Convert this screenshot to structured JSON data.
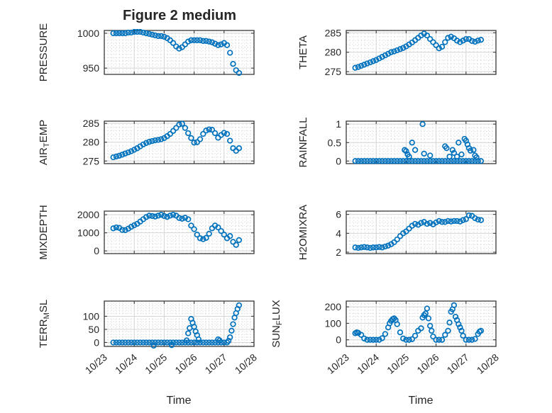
{
  "title": "Figure 2 medium",
  "xlabel": "Time",
  "colors": {
    "marker": "#0072BD",
    "axis": "#3a3a3a",
    "text": "#262626",
    "grid_major": "#d4d4d4",
    "grid_minor": "#c9c9c9",
    "background": "#ffffff"
  },
  "x_axis": {
    "lim": [
      23,
      28
    ],
    "ticks": [
      23,
      24,
      25,
      26,
      27,
      28
    ],
    "tick_labels": [
      "10/23",
      "10/24",
      "10/25",
      "10/26",
      "10/27",
      "10/28"
    ],
    "minor_step": 0.125
  },
  "time_base": [
    23.3,
    23.4,
    23.5,
    23.6,
    23.7,
    23.8,
    23.9,
    24.0,
    24.1,
    24.2,
    24.3,
    24.4,
    24.5,
    24.6,
    24.7,
    24.8,
    24.9,
    25.0,
    25.1,
    25.2,
    25.3,
    25.4,
    25.5,
    25.6,
    25.7,
    25.8,
    25.9,
    26.0,
    26.1,
    26.2,
    26.3,
    26.4,
    26.5,
    26.6,
    26.7,
    26.8,
    26.9,
    27.0,
    27.1,
    27.2,
    27.3,
    27.4,
    27.5
  ],
  "chart_data": [
    {
      "id": "pressure",
      "type": "scatter",
      "row": 0,
      "col": 0,
      "ylabel": "PRESSURE",
      "ylabel_parts": [
        {
          "t": "PRESSURE",
          "sub": false
        }
      ],
      "ylim": [
        941,
        1004
      ],
      "yticks": [
        950,
        1000
      ],
      "ytick_labels": [
        "950",
        "1000"
      ],
      "y_minor_step": 5,
      "y_base": [
        1000,
        1000,
        1000,
        1000,
        1000,
        1001,
        1001,
        1002,
        1002,
        1002,
        1001,
        1000,
        999,
        998,
        997,
        996,
        996,
        995,
        993,
        990,
        986,
        981,
        978,
        980,
        984,
        988,
        990,
        990,
        990,
        990,
        989,
        989,
        988,
        987,
        985,
        983,
        984,
        986,
        983,
        972,
        956,
        947,
        943
      ]
    },
    {
      "id": "theta",
      "type": "scatter",
      "row": 0,
      "col": 1,
      "ylabel": "THETA",
      "ylabel_parts": [
        {
          "t": "THETA",
          "sub": false
        }
      ],
      "ylim": [
        274.3,
        285.6
      ],
      "yticks": [
        275,
        280,
        285
      ],
      "ytick_labels": [
        "275",
        "280",
        "285"
      ],
      "y_minor_step": 1,
      "y_base": [
        276.0,
        276.2,
        276.5,
        276.8,
        277.1,
        277.4,
        277.7,
        278.0,
        278.4,
        278.8,
        279.2,
        279.6,
        280.0,
        280.2,
        280.5,
        280.8,
        281.1,
        281.5,
        282.0,
        282.5,
        283.1,
        283.7,
        284.3,
        284.8,
        284.3,
        283.4,
        282.6,
        281.8,
        281.0,
        281.4,
        282.6,
        283.7,
        284.0,
        283.6,
        283.0,
        282.6,
        283.0,
        283.4,
        283.4,
        282.9,
        282.7,
        283.0,
        283.2
      ]
    },
    {
      "id": "air_temp",
      "type": "scatter",
      "row": 1,
      "col": 0,
      "ylabel": "AIR_TEMP",
      "ylabel_parts": [
        {
          "t": "AIR",
          "sub": false
        },
        {
          "t": "T",
          "sub": true
        },
        {
          "t": "EMP",
          "sub": false
        }
      ],
      "ylim": [
        274.3,
        285.6
      ],
      "yticks": [
        275,
        280,
        285
      ],
      "ytick_labels": [
        "275",
        "280",
        "285"
      ],
      "y_minor_step": 1,
      "y_base": [
        276.0,
        276.2,
        276.4,
        276.7,
        277.0,
        277.3,
        277.6,
        278.0,
        278.4,
        278.9,
        279.4,
        279.8,
        280.1,
        280.3,
        280.5,
        280.6,
        280.8,
        281.1,
        281.6,
        282.2,
        283.0,
        283.8,
        284.7,
        284.9,
        283.8,
        282.4,
        281.1,
        279.9,
        280.0,
        280.8,
        282.2,
        283.1,
        283.4,
        283.3,
        282.4,
        281.2,
        281.9,
        282.5,
        282.2,
        280.4,
        278.4,
        277.7,
        278.4
      ]
    },
    {
      "id": "rainfall",
      "type": "scatter",
      "row": 1,
      "col": 1,
      "ylabel": "RAINFALL",
      "ylabel_parts": [
        {
          "t": "RAINFALL",
          "sub": false
        }
      ],
      "ylim": [
        -0.07,
        1.08
      ],
      "yticks": [
        0,
        0.5,
        1
      ],
      "ytick_labels": [
        "0",
        "0.5",
        "1"
      ],
      "y_minor_step": 0.1,
      "y_base": [
        0,
        0,
        0,
        0,
        0,
        0,
        0,
        0,
        0,
        0,
        0,
        0,
        0,
        0,
        0,
        0,
        0,
        0,
        0,
        0,
        0,
        0,
        0,
        0,
        0,
        0,
        0,
        0,
        0,
        0,
        0,
        0,
        0,
        0,
        0,
        0,
        0,
        0,
        0,
        0,
        0,
        0,
        0
      ],
      "x_extra": [
        24.95,
        25.0,
        25.05,
        25.1,
        25.2,
        25.3,
        25.55,
        25.6,
        25.8,
        26.3,
        26.35,
        26.45,
        26.55,
        26.6,
        26.7,
        26.75,
        26.85,
        26.95,
        27.0,
        27.05,
        27.1,
        27.15,
        27.25,
        27.3,
        27.35
      ],
      "y_extra": [
        0.3,
        0.27,
        0.18,
        0.12,
        0.5,
        0.3,
        1.0,
        0.2,
        0.15,
        0.4,
        0.35,
        0.12,
        0.3,
        0.22,
        0.12,
        0.5,
        0.18,
        0.6,
        0.55,
        0.45,
        0.35,
        0.28,
        0.3,
        0.15,
        0.1
      ]
    },
    {
      "id": "mixdepth",
      "type": "scatter",
      "row": 2,
      "col": 0,
      "ylabel": "MIXDEPTH",
      "ylabel_parts": [
        {
          "t": "MIXDEPTH",
          "sub": false
        }
      ],
      "ylim": [
        -150,
        2200
      ],
      "yticks": [
        0,
        1000,
        2000
      ],
      "ytick_labels": [
        "0",
        "1000",
        "2000"
      ],
      "y_minor_step": 200,
      "y_base": [
        1250,
        1300,
        1270,
        1160,
        1150,
        1230,
        1330,
        1420,
        1500,
        1620,
        1750,
        1870,
        1950,
        1930,
        1900,
        1950,
        2000,
        1930,
        1880,
        1950,
        2000,
        1950,
        1820,
        1780,
        1830,
        1750,
        1400,
        1200,
        900,
        700,
        650,
        720,
        950,
        1250,
        1400,
        1300,
        1100,
        900,
        700,
        820,
        500,
        330,
        600
      ]
    },
    {
      "id": "h2omixra",
      "type": "scatter",
      "row": 2,
      "col": 1,
      "ylabel": "H2OMIXRA",
      "ylabel_parts": [
        {
          "t": "H2OMIXRA",
          "sub": false
        }
      ],
      "ylim": [
        1.85,
        6.35
      ],
      "yticks": [
        2,
        4,
        6
      ],
      "ytick_labels": [
        "2",
        "4",
        "6"
      ],
      "y_minor_step": 0.4,
      "y_base": [
        2.5,
        2.45,
        2.5,
        2.55,
        2.5,
        2.45,
        2.5,
        2.5,
        2.55,
        2.5,
        2.6,
        2.7,
        2.85,
        3.05,
        3.35,
        3.7,
        4.0,
        4.2,
        4.5,
        4.8,
        5.0,
        4.9,
        5.1,
        5.2,
        5.0,
        5.1,
        4.95,
        5.15,
        5.3,
        5.2,
        5.2,
        5.3,
        5.25,
        5.3,
        5.3,
        5.25,
        5.4,
        5.5,
        5.9,
        5.85,
        5.6,
        5.45,
        5.4
      ]
    },
    {
      "id": "terr_msl",
      "type": "scatter",
      "row": 3,
      "col": 0,
      "ylabel": "TERR_MSL",
      "ylabel_parts": [
        {
          "t": "TERR",
          "sub": false
        },
        {
          "t": "M",
          "sub": true
        },
        {
          "t": "SL",
          "sub": false
        }
      ],
      "ylim": [
        -15,
        158
      ],
      "yticks": [
        0,
        50,
        100
      ],
      "ytick_labels": [
        "0",
        "50",
        "100"
      ],
      "y_minor_step": 10,
      "x": [
        23.3,
        23.4,
        23.5,
        23.6,
        23.7,
        23.8,
        23.9,
        24.0,
        24.1,
        24.2,
        24.3,
        24.4,
        24.5,
        24.6,
        24.7,
        24.8,
        24.9,
        25.0,
        25.1,
        25.2,
        25.3,
        25.4,
        25.5,
        25.6,
        25.7,
        25.8,
        25.9,
        26.0,
        26.1,
        26.2,
        26.3,
        26.4,
        26.5,
        26.6,
        26.7,
        26.8,
        26.9,
        27.0,
        27.1,
        24.65,
        25.25,
        25.75,
        25.8,
        25.85,
        25.9,
        25.95,
        26.0,
        26.05,
        26.1,
        26.15,
        26.8,
        26.85,
        27.15,
        27.2,
        27.25,
        27.3,
        27.35,
        27.4,
        27.45,
        27.5
      ],
      "y": [
        0,
        0,
        0,
        0,
        0,
        0,
        0,
        0,
        0,
        0,
        0,
        0,
        0,
        0,
        0,
        0,
        0,
        0,
        0,
        0,
        0,
        0,
        0,
        0,
        0,
        0,
        0,
        0,
        0,
        0,
        0,
        0,
        0,
        0,
        0,
        0,
        0,
        0,
        0,
        -12,
        -10,
        8,
        35,
        55,
        90,
        75,
        60,
        42,
        28,
        12,
        12,
        8,
        6,
        20,
        45,
        70,
        95,
        112,
        128,
        142
      ]
    },
    {
      "id": "sun_flux",
      "type": "scatter",
      "row": 3,
      "col": 1,
      "ylabel": "SUN_FLUX",
      "ylabel_parts": [
        {
          "t": "SUN",
          "sub": false
        },
        {
          "t": "F",
          "sub": true
        },
        {
          "t": "LUX",
          "sub": false
        }
      ],
      "ylim": [
        -40,
        235
      ],
      "yticks": [
        0,
        100,
        200
      ],
      "ytick_labels": [
        "0",
        "100",
        "200"
      ],
      "y_minor_step": 20,
      "y_base": [
        40,
        42,
        30,
        8,
        0,
        0,
        0,
        0,
        0,
        10,
        35,
        75,
        115,
        130,
        95,
        45,
        8,
        0,
        0,
        4,
        25,
        55,
        70,
        150,
        190,
        85,
        20,
        0,
        0,
        0,
        30,
        55,
        170,
        210,
        120,
        75,
        25,
        0,
        0,
        0,
        5,
        35,
        55
      ],
      "x_extra": [
        23.35,
        24.45,
        24.55,
        24.65,
        25.55,
        25.65,
        25.75,
        25.85,
        26.45,
        26.55,
        26.65,
        26.75,
        26.85,
        27.45
      ],
      "y_extra": [
        45,
        100,
        125,
        120,
        135,
        160,
        130,
        55,
        105,
        185,
        140,
        95,
        55,
        50
      ]
    }
  ]
}
